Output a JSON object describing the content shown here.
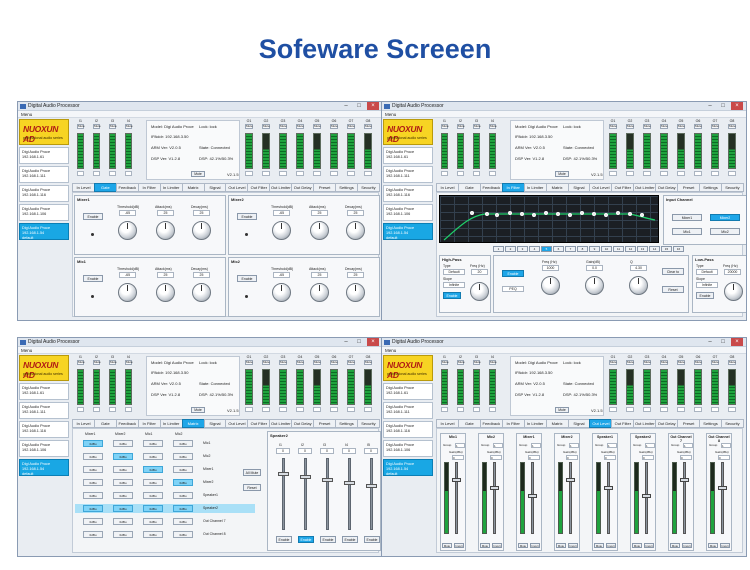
{
  "title": "Sofeware Screeen",
  "window": {
    "title": "Digital Audio Processor",
    "menu": "Menu"
  },
  "logo": {
    "brand": "NUOXUN AD",
    "tagline": "professional audio series"
  },
  "devices": [
    {
      "name": "Digi Audio Proce",
      "ip": "192.168.1.61"
    },
    {
      "name": "Digi Audio Proce",
      "ip": "192.168.1.111"
    },
    {
      "name": "Digi Audio Proce",
      "ip": "192.168.1.116"
    },
    {
      "name": "Digi Audio Proce",
      "ip": "192.168.1.106"
    },
    {
      "name": "Digi Audio Proce",
      "ip": "192.168.1.54",
      "extra": "default"
    }
  ],
  "inputs": [
    "I1",
    "I2",
    "I3",
    "I4"
  ],
  "outputs": [
    "O1",
    "O2",
    "O3",
    "O4",
    "O5",
    "O6",
    "O7",
    "O8"
  ],
  "mute_label": "Mute",
  "info": {
    "model": "Model: Digi Audio Proce",
    "ip": "IPAddr: 192.168.3.50",
    "arm": "ARM Ver: V2.0.5",
    "dsp": "DSP Ver: V1.2.8",
    "lock": "Lock: lock",
    "state": "State: Connected",
    "dspinfo": "DSP: 42.1%/50.3%",
    "version": "V2.1.5",
    "mute_btn": "Mute"
  },
  "tabs": [
    "In Level",
    "Gate",
    "Feedback",
    "In Filter",
    "In Limiter",
    "Matrix",
    "Signal",
    "Out Level",
    "Out Filter",
    "Out Limiter",
    "Out Delay",
    "Preset",
    "Settings",
    "Security"
  ],
  "gate": {
    "panels": [
      "Mixer1",
      "Mixer2",
      "Mic1",
      "Mic2"
    ],
    "enable": "Enable",
    "knob_labels": [
      "Threshold(dB)",
      "Attack(ms)",
      "Decay(ms)"
    ],
    "knob_values": [
      "-65",
      "25",
      "25"
    ]
  },
  "eq": {
    "bands": [
      "1",
      "2",
      "3",
      "4",
      "5",
      "6",
      "7",
      "8",
      "9",
      "10",
      "11",
      "12",
      "13",
      "14",
      "15",
      "16"
    ],
    "input_channel_title": "Input Channel",
    "input_channels": [
      "Mixer1",
      "Mixer2",
      "Mic1",
      "Mic2"
    ],
    "highpass": "High-Pass",
    "lowpass": "Low-Pass",
    "type_label": "Type",
    "type_value": "Default",
    "slope_label": "Slope",
    "slope_value": "Infinite",
    "freq_label": "Freq (Hz)",
    "hp_freq": "20",
    "lp_freq": "20000",
    "enable": "Enable",
    "band_type": "PEQ",
    "band_labels": [
      "Freq (Hz)",
      "Gain(dB)",
      "Q"
    ],
    "band_values": [
      "1000",
      "0.0",
      "4.30"
    ],
    "clear": "Clear to",
    "reset": "Reset"
  },
  "matrix": {
    "cols": [
      "Mixer1",
      "Mixer2",
      "Mic1",
      "Mic2"
    ],
    "rows": [
      "Mic1",
      "Mic2",
      "Mixer1",
      "Mixer2",
      "Speaker1",
      "Speaker2",
      "Out Channel 7",
      "Out Channel 8"
    ],
    "cell": "0dBu",
    "all_btn": "All Mute",
    "reset": "Reset",
    "speaker_title": "Speaker2",
    "speaker_chans": [
      "I1",
      "I2",
      "I3",
      "I4",
      "I5"
    ],
    "speaker_enable": "Enable"
  },
  "outlevel": {
    "channels": [
      "Mic1",
      "Mic2",
      "Mixer1",
      "Mixer2",
      "Speaker1",
      "Speaker2",
      "Out Channel 7",
      "Out Channel 8"
    ],
    "group": "Group",
    "gain": "Gain(dBu)",
    "mute": "Mute",
    "invert": "Invert"
  }
}
